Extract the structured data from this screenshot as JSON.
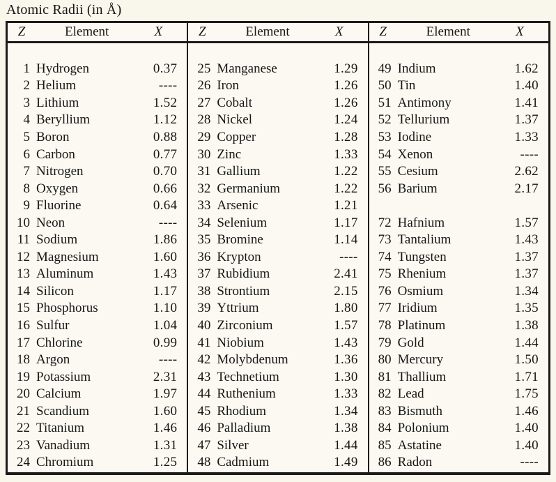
{
  "title": "Atomic Radii (in Å)",
  "header": {
    "z": "Z",
    "element": "Element",
    "x": "X"
  },
  "missing_value_marker": "----",
  "groups": [
    {
      "rows": [
        {
          "z": "1",
          "element": "Hydrogen",
          "x": "0.37"
        },
        {
          "z": "2",
          "element": "Helium",
          "x": "----"
        },
        {
          "z": "3",
          "element": "Lithium",
          "x": "1.52"
        },
        {
          "z": "4",
          "element": "Beryllium",
          "x": "1.12"
        },
        {
          "z": "5",
          "element": "Boron",
          "x": "0.88"
        },
        {
          "z": "6",
          "element": "Carbon",
          "x": "0.77"
        },
        {
          "z": "7",
          "element": "Nitrogen",
          "x": "0.70"
        },
        {
          "z": "8",
          "element": "Oxygen",
          "x": "0.66"
        },
        {
          "z": "9",
          "element": "Fluorine",
          "x": "0.64"
        },
        {
          "z": "10",
          "element": "Neon",
          "x": "----"
        },
        {
          "z": "11",
          "element": "Sodium",
          "x": "1.86"
        },
        {
          "z": "12",
          "element": "Magnesium",
          "x": "1.60"
        },
        {
          "z": "13",
          "element": "Aluminum",
          "x": "1.43"
        },
        {
          "z": "14",
          "element": "Silicon",
          "x": "1.17"
        },
        {
          "z": "15",
          "element": "Phosphorus",
          "x": "1.10"
        },
        {
          "z": "16",
          "element": "Sulfur",
          "x": "1.04"
        },
        {
          "z": "17",
          "element": "Chlorine",
          "x": "0.99"
        },
        {
          "z": "18",
          "element": "Argon",
          "x": "----"
        },
        {
          "z": "19",
          "element": "Potassium",
          "x": "2.31"
        },
        {
          "z": "20",
          "element": "Calcium",
          "x": "1.97"
        },
        {
          "z": "21",
          "element": "Scandium",
          "x": "1.60"
        },
        {
          "z": "22",
          "element": "Titanium",
          "x": "1.46"
        },
        {
          "z": "23",
          "element": "Vanadium",
          "x": "1.31"
        },
        {
          "z": "24",
          "element": "Chromium",
          "x": "1.25"
        }
      ]
    },
    {
      "rows": [
        {
          "z": "25",
          "element": "Manganese",
          "x": "1.29"
        },
        {
          "z": "26",
          "element": "Iron",
          "x": "1.26"
        },
        {
          "z": "27",
          "element": "Cobalt",
          "x": "1.26"
        },
        {
          "z": "28",
          "element": "Nickel",
          "x": "1.24"
        },
        {
          "z": "29",
          "element": "Copper",
          "x": "1.28"
        },
        {
          "z": "30",
          "element": "Zinc",
          "x": "1.33"
        },
        {
          "z": "31",
          "element": "Gallium",
          "x": "1.22"
        },
        {
          "z": "32",
          "element": "Germanium",
          "x": "1.22"
        },
        {
          "z": "33",
          "element": "Arsenic",
          "x": "1.21"
        },
        {
          "z": "34",
          "element": "Selenium",
          "x": "1.17"
        },
        {
          "z": "35",
          "element": "Bromine",
          "x": "1.14"
        },
        {
          "z": "36",
          "element": "Krypton",
          "x": "----"
        },
        {
          "z": "37",
          "element": "Rubidium",
          "x": "2.41"
        },
        {
          "z": "38",
          "element": "Strontium",
          "x": "2.15"
        },
        {
          "z": "39",
          "element": "Yttrium",
          "x": "1.80"
        },
        {
          "z": "40",
          "element": "Zirconium",
          "x": "1.57"
        },
        {
          "z": "41",
          "element": "Niobium",
          "x": "1.43"
        },
        {
          "z": "42",
          "element": "Molybdenum",
          "x": "1.36"
        },
        {
          "z": "43",
          "element": "Technetium",
          "x": "1.30"
        },
        {
          "z": "44",
          "element": "Ruthenium",
          "x": "1.33"
        },
        {
          "z": "45",
          "element": "Rhodium",
          "x": "1.34"
        },
        {
          "z": "46",
          "element": "Palladium",
          "x": "1.38"
        },
        {
          "z": "47",
          "element": "Silver",
          "x": "1.44"
        },
        {
          "z": "48",
          "element": "Cadmium",
          "x": "1.49"
        }
      ]
    },
    {
      "rows": [
        {
          "z": "49",
          "element": "Indium",
          "x": "1.62"
        },
        {
          "z": "50",
          "element": "Tin",
          "x": "1.40"
        },
        {
          "z": "51",
          "element": "Antimony",
          "x": "1.41"
        },
        {
          "z": "52",
          "element": "Tellurium",
          "x": "1.37"
        },
        {
          "z": "53",
          "element": "Iodine",
          "x": "1.33"
        },
        {
          "z": "54",
          "element": "Xenon",
          "x": "----"
        },
        {
          "z": "55",
          "element": "Cesium",
          "x": "2.62"
        },
        {
          "z": "56",
          "element": "Barium",
          "x": "2.17"
        },
        {
          "z": "",
          "element": "",
          "x": ""
        },
        {
          "z": "72",
          "element": "Hafnium",
          "x": "1.57"
        },
        {
          "z": "73",
          "element": "Tantalium",
          "x": "1.43"
        },
        {
          "z": "74",
          "element": "Tungsten",
          "x": "1.37"
        },
        {
          "z": "75",
          "element": "Rhenium",
          "x": "1.37"
        },
        {
          "z": "76",
          "element": "Osmium",
          "x": "1.34"
        },
        {
          "z": "77",
          "element": "Iridium",
          "x": "1.35"
        },
        {
          "z": "78",
          "element": "Platinum",
          "x": "1.38"
        },
        {
          "z": "79",
          "element": "Gold",
          "x": "1.44"
        },
        {
          "z": "80",
          "element": "Mercury",
          "x": "1.50"
        },
        {
          "z": "81",
          "element": "Thallium",
          "x": "1.71"
        },
        {
          "z": "82",
          "element": "Lead",
          "x": "1.75"
        },
        {
          "z": "83",
          "element": "Bismuth",
          "x": "1.46"
        },
        {
          "z": "84",
          "element": "Polonium",
          "x": "1.40"
        },
        {
          "z": "85",
          "element": "Astatine",
          "x": "1.40"
        },
        {
          "z": "86",
          "element": "Radon",
          "x": "----"
        }
      ]
    }
  ]
}
